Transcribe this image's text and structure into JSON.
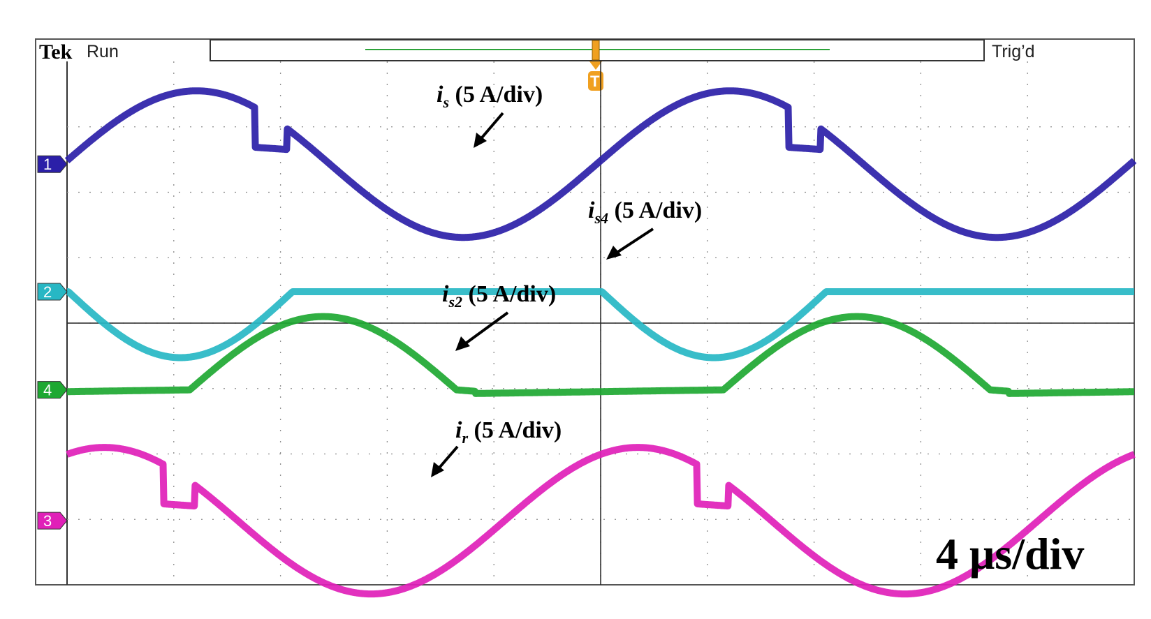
{
  "header": {
    "brand": "Tek",
    "run_status": "Run",
    "trigger_status": "Trig’d",
    "trigger_marker": "T"
  },
  "timebase_label": "4 μs/div",
  "annotations": {
    "is": {
      "sym": "i",
      "sub": "s",
      "text": " (5 A/div)"
    },
    "is4": {
      "sym": "i",
      "sub": "s4",
      "text": " (5 A/div)"
    },
    "is2": {
      "sym": "i",
      "sub": "s2",
      "text": " (5 A/div)"
    },
    "ir": {
      "sym": "i",
      "sub": "r",
      "text": " (5 A/div)"
    }
  },
  "chart_data": {
    "type": "line",
    "grid": true,
    "x_divisions": 10,
    "y_divisions": 8,
    "time_per_div_us": 4,
    "x_range_us": [
      0,
      40
    ],
    "series": [
      {
        "name": "i_s",
        "channel": "1",
        "color": "#2b1fa8",
        "period_us": 20,
        "amplitude_div": 1.12
      },
      {
        "name": "i_s4",
        "channel": "2",
        "color": "#27b7c4",
        "period_us": 20,
        "amplitude_div": 1.12
      },
      {
        "name": "i_s2",
        "channel": "4",
        "color": "#1ea832",
        "period_us": 20,
        "amplitude_div": 1.12
      },
      {
        "name": "i_r",
        "channel": "3",
        "color": "#e020b8",
        "period_us": 20,
        "amplitude_div": 1.12
      }
    ]
  }
}
